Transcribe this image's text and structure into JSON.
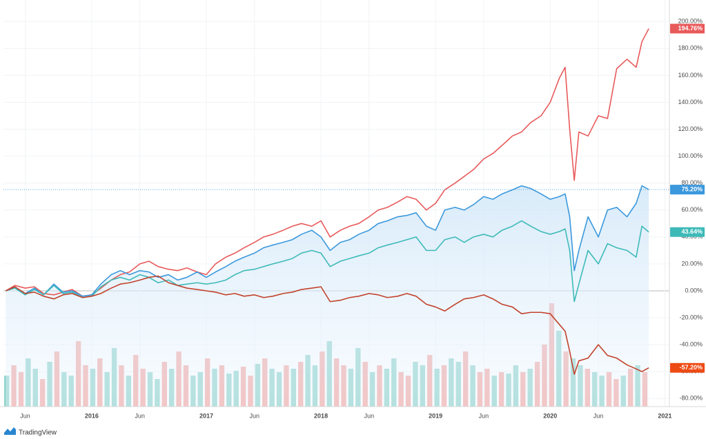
{
  "chart_data": {
    "type": "line",
    "x": [
      2015.25,
      2015.33,
      2015.42,
      2015.5,
      2015.58,
      2015.67,
      2015.75,
      2015.83,
      2015.92,
      2016.0,
      2016.08,
      2016.17,
      2016.25,
      2016.33,
      2016.42,
      2016.5,
      2016.58,
      2016.67,
      2016.75,
      2016.83,
      2016.92,
      2017.0,
      2017.08,
      2017.17,
      2017.25,
      2017.33,
      2017.42,
      2017.5,
      2017.58,
      2017.67,
      2017.75,
      2017.83,
      2017.92,
      2018.0,
      2018.08,
      2018.17,
      2018.25,
      2018.33,
      2018.42,
      2018.5,
      2018.58,
      2018.67,
      2018.75,
      2018.83,
      2018.92,
      2019.0,
      2019.08,
      2019.17,
      2019.25,
      2019.33,
      2019.42,
      2019.5,
      2019.58,
      2019.67,
      2019.75,
      2019.83,
      2019.92,
      2020.0,
      2020.08,
      2020.13,
      2020.17,
      2020.21,
      2020.25,
      2020.33,
      2020.42,
      2020.5,
      2020.58,
      2020.67,
      2020.75,
      2020.8,
      2020.86
    ],
    "series": [
      {
        "color": "#e8595a",
        "values": [
          0,
          4,
          2,
          3,
          -2,
          -3,
          -1,
          1,
          -4,
          -3,
          2,
          8,
          12,
          14,
          20,
          22,
          18,
          16,
          15,
          17,
          14,
          12,
          20,
          25,
          28,
          32,
          36,
          40,
          42,
          45,
          48,
          50,
          48,
          52,
          40,
          45,
          48,
          50,
          55,
          60,
          62,
          66,
          70,
          68,
          60,
          65,
          75,
          80,
          85,
          90,
          98,
          102,
          108,
          115,
          118,
          125,
          130,
          140,
          158,
          166,
          120,
          82,
          118,
          115,
          130,
          128,
          165,
          172,
          166,
          185,
          194.76
        ],
        "value_labels": "194.76%"
      },
      {
        "color": "#3b98dc",
        "area": true,
        "values": [
          0,
          3,
          -2,
          2,
          -3,
          5,
          -1,
          0,
          -4,
          -3,
          5,
          12,
          15,
          12,
          15,
          14,
          10,
          12,
          8,
          10,
          14,
          10,
          14,
          18,
          22,
          25,
          28,
          32,
          34,
          36,
          38,
          42,
          45,
          40,
          30,
          36,
          38,
          42,
          45,
          50,
          52,
          55,
          56,
          58,
          48,
          45,
          60,
          62,
          60,
          64,
          70,
          68,
          72,
          75,
          78,
          76,
          72,
          68,
          70,
          72,
          55,
          15,
          30,
          55,
          40,
          60,
          62,
          55,
          65,
          78,
          75.2
        ],
        "value_labels": "75.20%"
      },
      {
        "color": "#3dbab8",
        "values": [
          0,
          2,
          -3,
          1,
          -3,
          4,
          -2,
          -1,
          -5,
          -4,
          3,
          8,
          10,
          8,
          12,
          10,
          6,
          8,
          4,
          5,
          6,
          5,
          6,
          8,
          12,
          15,
          16,
          18,
          20,
          22,
          24,
          28,
          30,
          28,
          18,
          22,
          24,
          26,
          28,
          32,
          34,
          36,
          38,
          40,
          30,
          30,
          38,
          40,
          36,
          40,
          42,
          40,
          45,
          48,
          52,
          48,
          44,
          42,
          44,
          46,
          30,
          -8,
          5,
          30,
          20,
          35,
          32,
          30,
          25,
          48,
          43.64
        ],
        "value_labels": "43.64%"
      },
      {
        "color": "#c2412b",
        "label_color": "#ee4a14",
        "values": [
          0,
          3,
          -2,
          -1,
          -4,
          -6,
          -3,
          -2,
          -5,
          -4,
          -2,
          2,
          5,
          6,
          8,
          10,
          11,
          6,
          4,
          2,
          1,
          0,
          -1,
          -3,
          -2,
          -4,
          -3,
          -5,
          -4,
          -2,
          -1,
          1,
          2,
          3,
          -8,
          -7,
          -5,
          -4,
          -2,
          -3,
          -5,
          -4,
          -2,
          -4,
          -10,
          -12,
          -15,
          -10,
          -6,
          -5,
          -3,
          -6,
          -10,
          -12,
          -17,
          -16,
          -16,
          -17,
          -25,
          -30,
          -45,
          -62,
          -52,
          -50,
          -40,
          -48,
          -50,
          -55,
          -58,
          -60,
          -57.2
        ],
        "value_labels": "-57.20%"
      }
    ],
    "volume": {
      "up_color": "#8fd3cb",
      "down_color": "#f4a7a3",
      "values": [
        45,
        60,
        50,
        70,
        55,
        40,
        65,
        80,
        50,
        45,
        95,
        60,
        55,
        70,
        50,
        85,
        60,
        45,
        75,
        55,
        50,
        40,
        65,
        55,
        80,
        60,
        45,
        50,
        70,
        55,
        60,
        48,
        52,
        58,
        45,
        62,
        70,
        55,
        50,
        60,
        55,
        65,
        75,
        60,
        80,
        95,
        70,
        60,
        55,
        85,
        65,
        50,
        60,
        55,
        70,
        50,
        45,
        65,
        60,
        75,
        55,
        60,
        70,
        65,
        80,
        60,
        50,
        55,
        45,
        50,
        48,
        60,
        50,
        55,
        65,
        90,
        150,
        110,
        80,
        70,
        60,
        55,
        50,
        45,
        50,
        40,
        45,
        55,
        60,
        50
      ],
      "up": [
        1,
        0,
        0,
        1,
        1,
        0,
        1,
        0,
        1,
        1,
        0,
        0,
        1,
        0,
        1,
        1,
        0,
        1,
        0,
        0,
        1,
        1,
        0,
        1,
        0,
        0,
        1,
        1,
        0,
        1,
        0,
        1,
        1,
        0,
        0,
        1,
        0,
        1,
        1,
        0,
        1,
        0,
        1,
        1,
        0,
        1,
        0,
        0,
        1,
        1,
        0,
        1,
        0,
        1,
        1,
        0,
        0,
        1,
        1,
        0,
        1,
        0,
        1,
        1,
        0,
        1,
        0,
        0,
        1,
        0,
        1,
        1,
        0,
        1,
        0,
        0,
        0,
        1,
        0,
        1,
        1,
        0,
        1,
        1,
        0,
        0,
        1,
        0,
        1,
        0
      ]
    },
    "xlim": [
      2015.23,
      2021.04
    ],
    "ylim": [
      -86,
      216
    ],
    "xticks": [
      {
        "value": 2015.42,
        "label": "Jun"
      },
      2016,
      {
        "value": 2016.42,
        "label": "Jun"
      },
      2017,
      {
        "value": 2017.42,
        "label": "Jun"
      },
      2018,
      {
        "value": 2018.42,
        "label": "Jun"
      },
      2019,
      {
        "value": 2019.42,
        "label": "Jun"
      },
      2020,
      {
        "value": 2020.42,
        "label": "Jun"
      },
      2021
    ],
    "yticks": [
      {
        "value": 200,
        "label": "200.00%"
      },
      {
        "value": 180,
        "label": "180.00%"
      },
      {
        "value": 160,
        "label": "160.00%"
      },
      {
        "value": 140,
        "label": "140.00%"
      },
      {
        "value": 120,
        "label": "120.00%"
      },
      {
        "value": 100,
        "label": "100.00%"
      },
      {
        "value": 80,
        "label": "80.00%"
      },
      {
        "value": 60,
        "label": "60.00%"
      },
      {
        "value": 40,
        "label": "40.00%"
      },
      {
        "value": 20,
        "label": "20.00%"
      },
      {
        "value": 0,
        "label": "0.00%"
      },
      {
        "value": -20,
        "label": "-20.00%"
      },
      {
        "value": -40,
        "label": "-40.00%"
      },
      {
        "value": -60,
        "label": "-60.00%"
      },
      {
        "value": -80,
        "label": "-80.00%"
      }
    ],
    "grid": true,
    "brand": "TradingView"
  }
}
